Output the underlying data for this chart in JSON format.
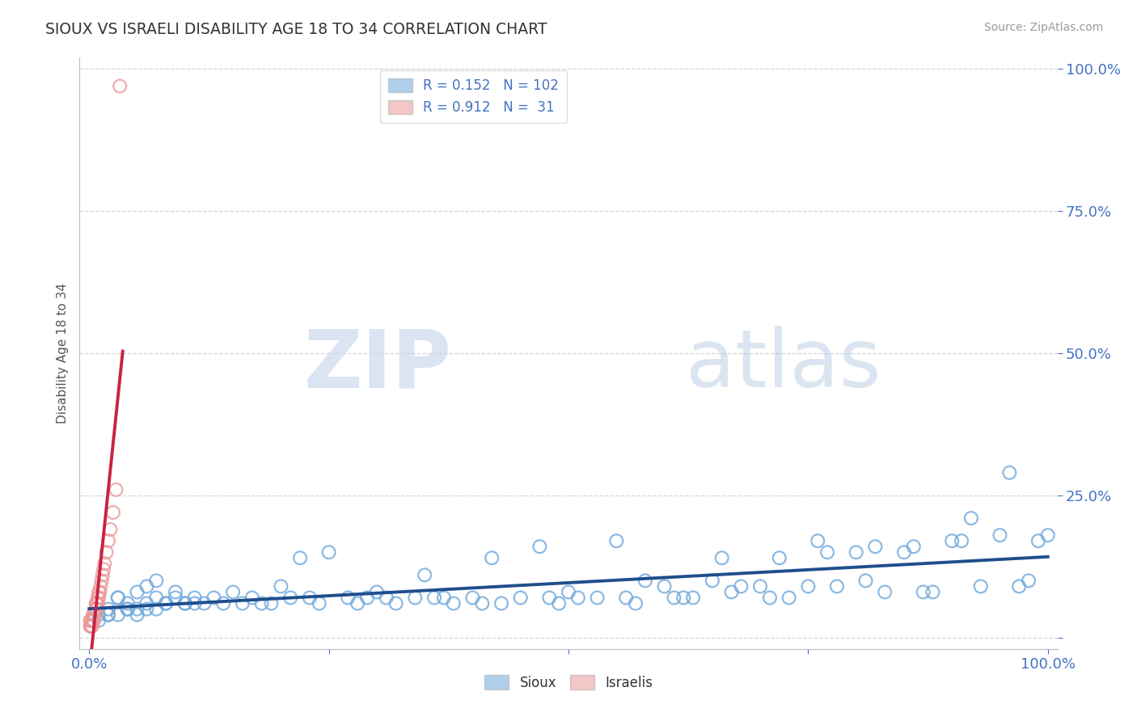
{
  "title": "SIOUX VS ISRAELI DISABILITY AGE 18 TO 34 CORRELATION CHART",
  "source_text": "Source: ZipAtlas.com",
  "ylabel": "Disability Age 18 to 34",
  "sioux_color": "#6fa8dc",
  "israeli_color": "#ea9999",
  "sioux_R": 0.152,
  "sioux_N": 102,
  "israeli_R": 0.912,
  "israeli_N": 31,
  "watermark_zip": "ZIP",
  "watermark_atlas": "atlas",
  "background_color": "#ffffff",
  "grid_color": "#cccccc",
  "title_color": "#333333",
  "axis_tick_color": "#4472c4",
  "sioux_line_color": "#1f4e8c",
  "israeli_line_color": "#cc2244",
  "sioux_x": [
    0.02,
    0.03,
    0.03,
    0.04,
    0.05,
    0.05,
    0.06,
    0.06,
    0.07,
    0.07,
    0.08,
    0.09,
    0.1,
    0.11,
    0.12,
    0.13,
    0.14,
    0.15,
    0.16,
    0.17,
    0.18,
    0.19,
    0.2,
    0.21,
    0.22,
    0.23,
    0.24,
    0.25,
    0.27,
    0.28,
    0.29,
    0.3,
    0.31,
    0.32,
    0.34,
    0.35,
    0.36,
    0.37,
    0.38,
    0.4,
    0.41,
    0.42,
    0.43,
    0.45,
    0.47,
    0.48,
    0.49,
    0.5,
    0.51,
    0.53,
    0.55,
    0.56,
    0.57,
    0.58,
    0.6,
    0.61,
    0.62,
    0.63,
    0.65,
    0.66,
    0.67,
    0.68,
    0.7,
    0.71,
    0.72,
    0.73,
    0.75,
    0.76,
    0.77,
    0.78,
    0.8,
    0.81,
    0.82,
    0.83,
    0.85,
    0.86,
    0.87,
    0.88,
    0.9,
    0.91,
    0.92,
    0.93,
    0.95,
    0.96,
    0.97,
    0.98,
    0.99,
    1.0,
    0.01,
    0.01,
    0.02,
    0.02,
    0.03,
    0.04,
    0.04,
    0.05,
    0.06,
    0.07,
    0.08,
    0.09,
    0.1,
    0.11
  ],
  "sioux_y": [
    0.05,
    0.07,
    0.04,
    0.06,
    0.08,
    0.05,
    0.09,
    0.06,
    0.1,
    0.07,
    0.06,
    0.08,
    0.06,
    0.07,
    0.06,
    0.07,
    0.06,
    0.08,
    0.06,
    0.07,
    0.06,
    0.06,
    0.09,
    0.07,
    0.14,
    0.07,
    0.06,
    0.15,
    0.07,
    0.06,
    0.07,
    0.08,
    0.07,
    0.06,
    0.07,
    0.11,
    0.07,
    0.07,
    0.06,
    0.07,
    0.06,
    0.14,
    0.06,
    0.07,
    0.16,
    0.07,
    0.06,
    0.08,
    0.07,
    0.07,
    0.17,
    0.07,
    0.06,
    0.1,
    0.09,
    0.07,
    0.07,
    0.07,
    0.1,
    0.14,
    0.08,
    0.09,
    0.09,
    0.07,
    0.14,
    0.07,
    0.09,
    0.17,
    0.15,
    0.09,
    0.15,
    0.1,
    0.16,
    0.08,
    0.15,
    0.16,
    0.08,
    0.08,
    0.17,
    0.17,
    0.21,
    0.09,
    0.18,
    0.29,
    0.09,
    0.1,
    0.17,
    0.18,
    0.03,
    0.04,
    0.04,
    0.04,
    0.07,
    0.05,
    0.05,
    0.04,
    0.05,
    0.05,
    0.06,
    0.07,
    0.06,
    0.06
  ],
  "israeli_x": [
    0.001,
    0.001,
    0.002,
    0.002,
    0.003,
    0.003,
    0.004,
    0.004,
    0.005,
    0.005,
    0.006,
    0.007,
    0.007,
    0.008,
    0.008,
    0.009,
    0.009,
    0.01,
    0.01,
    0.011,
    0.012,
    0.013,
    0.014,
    0.015,
    0.016,
    0.018,
    0.02,
    0.022,
    0.025,
    0.028,
    0.032
  ],
  "israeli_y": [
    0.02,
    0.03,
    0.02,
    0.03,
    0.02,
    0.03,
    0.03,
    0.04,
    0.03,
    0.04,
    0.04,
    0.05,
    0.06,
    0.05,
    0.06,
    0.06,
    0.07,
    0.07,
    0.08,
    0.08,
    0.09,
    0.1,
    0.11,
    0.12,
    0.13,
    0.15,
    0.17,
    0.19,
    0.22,
    0.26,
    0.97
  ],
  "xlim_min": 0.0,
  "xlim_max": 1.0,
  "ylim_min": 0.0,
  "ylim_max": 1.0
}
